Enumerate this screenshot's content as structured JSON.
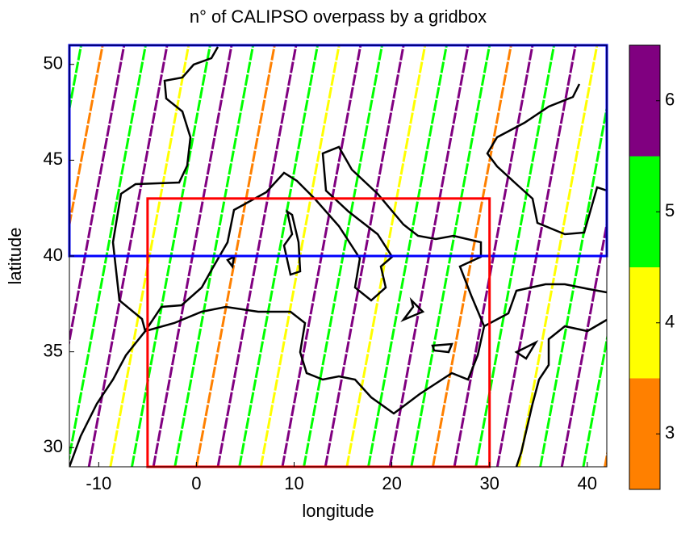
{
  "chart_data": {
    "type": "map",
    "title": "n° of CALIPSO overpass by a gridbox",
    "x_label": "longitude",
    "y_label": "latitude",
    "xlim": [
      -13,
      42
    ],
    "xticks": [
      -10,
      0,
      10,
      20,
      30,
      40
    ],
    "ylim": [
      29,
      51
    ],
    "yticks": [
      30,
      35,
      40,
      45,
      50
    ],
    "colorbar": {
      "bounds": [
        2.5,
        3.5,
        4.5,
        5.5,
        6.5
      ],
      "colors": [
        "#ff8000",
        "#ffff00",
        "#00ff00",
        "#800080"
      ],
      "ticks": [
        3,
        4,
        5,
        6
      ]
    },
    "tracks": {
      "x": [
        -22,
        -19.8,
        -17.6,
        -15.4,
        -13.2,
        -11,
        -8.8,
        -6.6,
        -4.4,
        -2.2,
        0,
        2.2,
        4.4,
        6.6,
        8.8,
        11,
        13.2,
        15.4,
        17.6,
        19.8,
        22,
        24.2,
        26.4,
        28.6,
        30.8,
        33,
        35.2,
        37.4,
        39.6,
        41.8
      ],
      "values": [
        6,
        5,
        3,
        6,
        5,
        6,
        4,
        5,
        6,
        5,
        3,
        6,
        5,
        4,
        6,
        5,
        6,
        4,
        5,
        6,
        5,
        3,
        6,
        5,
        6,
        4,
        5,
        6,
        5,
        3
      ]
    },
    "regions": [
      {
        "color": "#0000ff",
        "xlim": [
          -13,
          42
        ],
        "ylim": [
          40,
          51
        ]
      },
      {
        "color": "#ff0000",
        "xlim": [
          -5,
          30
        ],
        "ylim": [
          29,
          43
        ]
      }
    ]
  }
}
